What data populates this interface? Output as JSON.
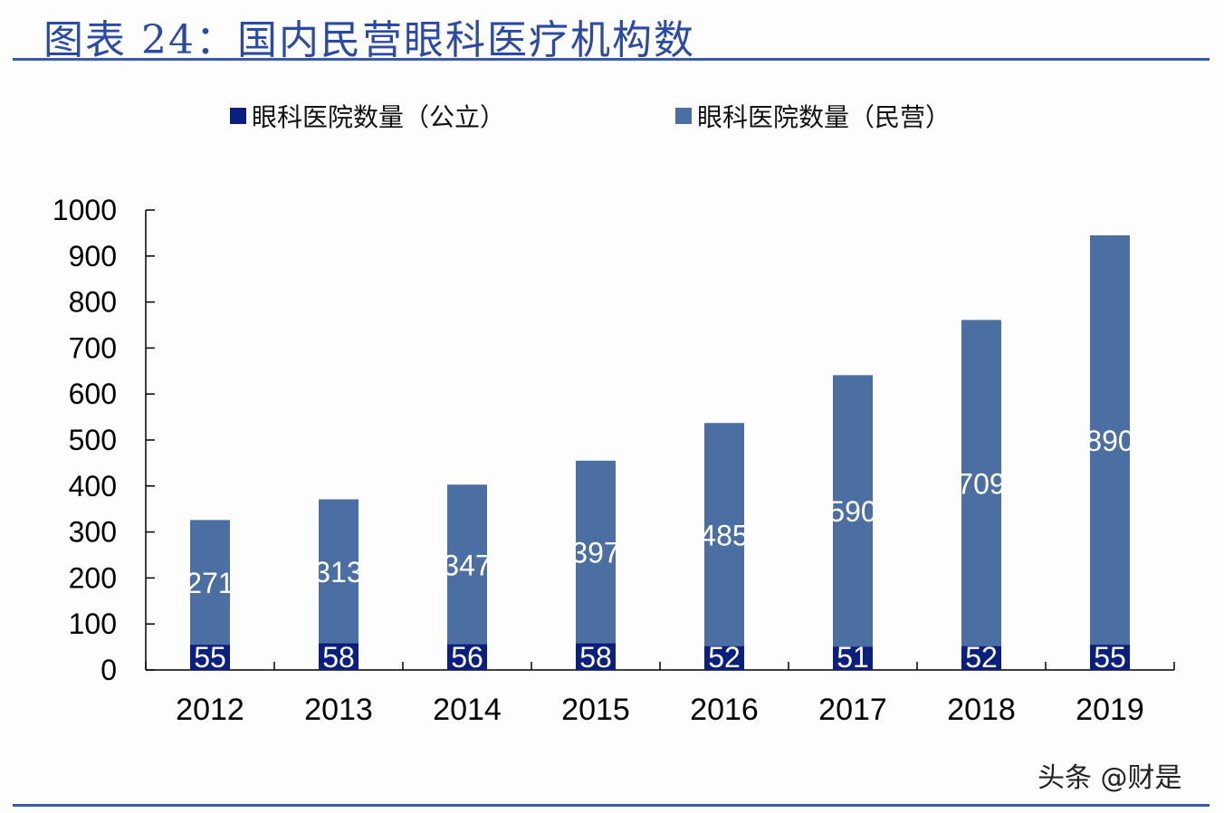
{
  "title": "图表 24：国内民营眼科医疗机构数",
  "watermark": "头条 @财是",
  "colors": {
    "public": "#0b1f7e",
    "private": "#4b6ea3",
    "rule": "#3a58a8",
    "title": "#2a4aa6"
  },
  "chart_data": {
    "type": "bar",
    "stacked": true,
    "title": "图表 24：国内民营眼科医疗机构数",
    "categories": [
      "2012",
      "2013",
      "2014",
      "2015",
      "2016",
      "2017",
      "2018",
      "2019"
    ],
    "series": [
      {
        "name": "眼科医院数量（公立）",
        "values": [
          55,
          58,
          56,
          58,
          52,
          51,
          52,
          55
        ]
      },
      {
        "name": "眼科医院数量（民营）",
        "values": [
          271,
          313,
          347,
          397,
          485,
          590,
          709,
          890
        ]
      }
    ],
    "ylim": [
      0,
      1000
    ],
    "yticks": [
      0,
      100,
      200,
      300,
      400,
      500,
      600,
      700,
      800,
      900,
      1000
    ],
    "xlabel": "",
    "ylabel": "",
    "grid": false,
    "legend": "top"
  }
}
